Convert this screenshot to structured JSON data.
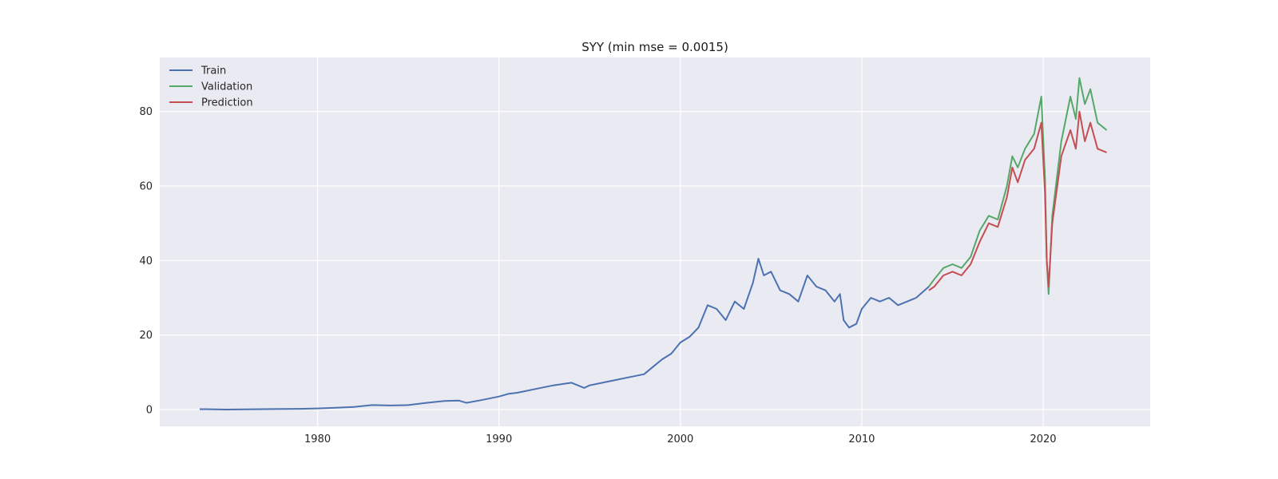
{
  "chart_data": {
    "type": "line",
    "title": "SYY (min mse = 0.0015)",
    "xlabel": "",
    "ylabel": "",
    "xlim": [
      1971.3,
      2025.9
    ],
    "ylim": [
      -4.5,
      94.5
    ],
    "xticks": [
      1980,
      1990,
      2000,
      2010,
      2020
    ],
    "yticks": [
      0,
      20,
      40,
      60,
      80
    ],
    "grid": true,
    "legend_position": "top-left",
    "colors": {
      "Train": "#4c72b0",
      "Validation": "#55a868",
      "Prediction": "#c44e52",
      "background": "#eaeaf2",
      "grid": "#ffffff"
    },
    "series": [
      {
        "name": "Train",
        "x": [
          1973.5,
          1975,
          1977,
          1979,
          1980,
          1981,
          1982,
          1983,
          1984,
          1985,
          1986,
          1987,
          1987.8,
          1988.2,
          1989,
          1990,
          1990.5,
          1991,
          1992,
          1993,
          1994,
          1994.7,
          1995,
          1996,
          1997,
          1998,
          1998.5,
          1999,
          1999.5,
          2000,
          2000.5,
          2001,
          2001.5,
          2002,
          2002.5,
          2003,
          2003.5,
          2004,
          2004.3,
          2004.6,
          2005,
          2005.5,
          2006,
          2006.5,
          2007,
          2007.5,
          2008,
          2008.5,
          2008.8,
          2009,
          2009.3,
          2009.7,
          2010,
          2010.5,
          2011,
          2011.5,
          2012,
          2012.5,
          2013,
          2013.7
        ],
        "y": [
          0.1,
          0,
          0.1,
          0.2,
          0.3,
          0.5,
          0.7,
          1.2,
          1.1,
          1.2,
          1.8,
          2.3,
          2.4,
          1.8,
          2.5,
          3.5,
          4.2,
          4.5,
          5.5,
          6.5,
          7.2,
          5.8,
          6.5,
          7.5,
          8.5,
          9.5,
          11.5,
          13.5,
          15,
          18,
          19.5,
          22,
          28,
          27,
          24,
          29,
          27,
          34,
          40.5,
          36,
          37,
          32,
          31,
          29,
          36,
          33,
          32,
          29,
          31,
          24,
          22,
          23,
          27,
          30,
          29,
          30,
          28,
          29,
          30,
          33
        ]
      },
      {
        "name": "Validation",
        "x": [
          2013.7,
          2014,
          2014.5,
          2015,
          2015.5,
          2016,
          2016.5,
          2017,
          2017.5,
          2018,
          2018.3,
          2018.6,
          2019,
          2019.5,
          2019.9,
          2020.1,
          2020.2,
          2020.3,
          2020.5,
          2021,
          2021.5,
          2021.8,
          2022,
          2022.3,
          2022.6,
          2023,
          2023.5
        ],
        "y": [
          33,
          35,
          38,
          39,
          38,
          41,
          48,
          52,
          51,
          60,
          68,
          65,
          70,
          74,
          84,
          62,
          40,
          31,
          52,
          72,
          84,
          78,
          89,
          82,
          86,
          77,
          75
        ]
      },
      {
        "name": "Prediction",
        "x": [
          2013.7,
          2014,
          2014.5,
          2015,
          2015.5,
          2016,
          2016.5,
          2017,
          2017.5,
          2018,
          2018.3,
          2018.6,
          2019,
          2019.5,
          2019.9,
          2020.1,
          2020.2,
          2020.3,
          2020.5,
          2021,
          2021.5,
          2021.8,
          2022,
          2022.3,
          2022.6,
          2023,
          2023.5
        ],
        "y": [
          32,
          33,
          36,
          37,
          36,
          39,
          45,
          50,
          49,
          57,
          65,
          61,
          67,
          70,
          77,
          58,
          40,
          33,
          50,
          68,
          75,
          70,
          80,
          72,
          77,
          70,
          69
        ]
      }
    ]
  }
}
